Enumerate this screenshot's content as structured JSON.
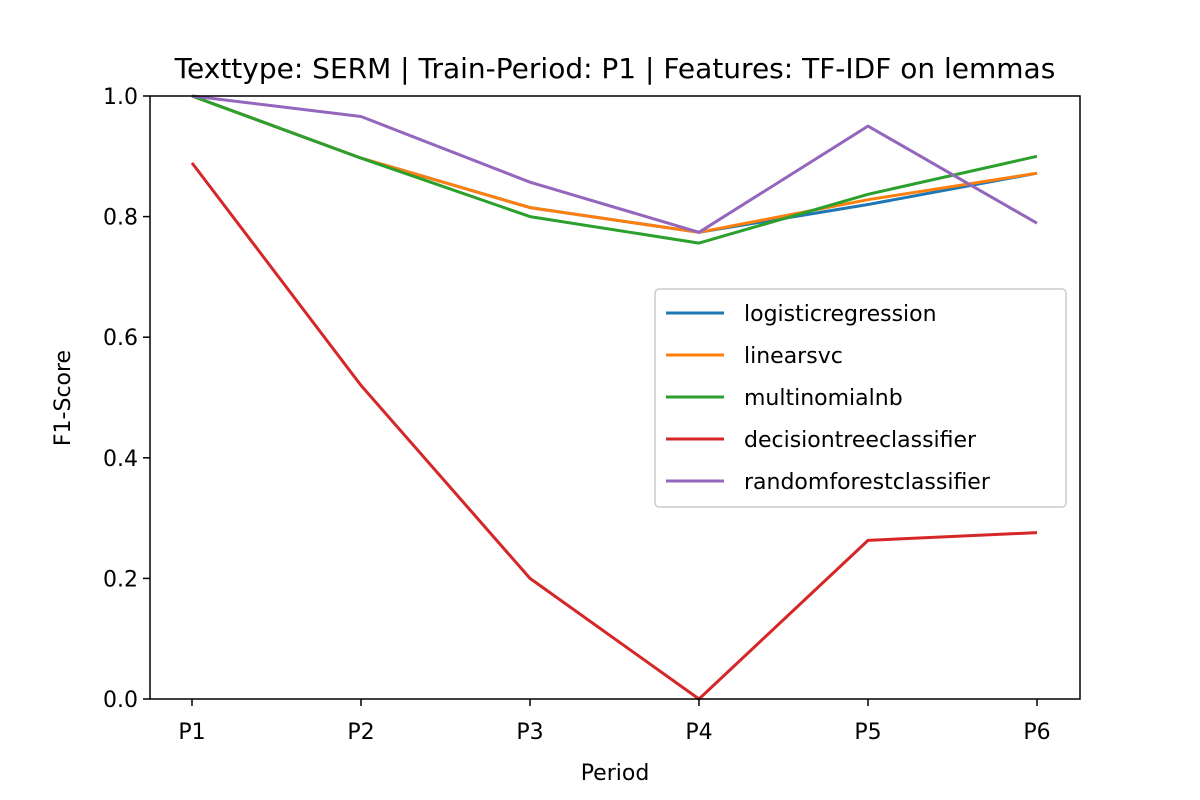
{
  "chart_data": {
    "type": "line",
    "title": "Texttype: SERM | Train-Period: P1 | Features: TF-IDF on lemmas",
    "xlabel": "Period",
    "ylabel": "F1-Score",
    "categories": [
      "P1",
      "P2",
      "P3",
      "P4",
      "P5",
      "P6"
    ],
    "ylim": [
      0.0,
      1.0
    ],
    "yticks": [
      0.0,
      0.2,
      0.4,
      0.6,
      0.8,
      1.0
    ],
    "ytick_labels": [
      "0.0",
      "0.2",
      "0.4",
      "0.6",
      "0.8",
      "1.0"
    ],
    "grid": false,
    "legend_position": "center-right",
    "series": [
      {
        "name": "logisticregression",
        "color": "#1f77b4",
        "values": [
          1.0,
          0.897,
          0.815,
          0.774,
          0.82,
          0.872
        ]
      },
      {
        "name": "linearsvc",
        "color": "#ff7f0e",
        "values": [
          1.0,
          0.897,
          0.815,
          0.774,
          0.828,
          0.872
        ]
      },
      {
        "name": "multinomialnb",
        "color": "#2ca02c",
        "values": [
          1.0,
          0.897,
          0.8,
          0.756,
          0.837,
          0.9
        ]
      },
      {
        "name": "decisiontreeclassifier",
        "color": "#d62728",
        "values": [
          0.889,
          0.52,
          0.2,
          0.0,
          0.263,
          0.276
        ]
      },
      {
        "name": "randomforestclassifier",
        "color": "#9467bd",
        "values": [
          1.0,
          0.966,
          0.857,
          0.774,
          0.95,
          0.789
        ]
      }
    ]
  }
}
